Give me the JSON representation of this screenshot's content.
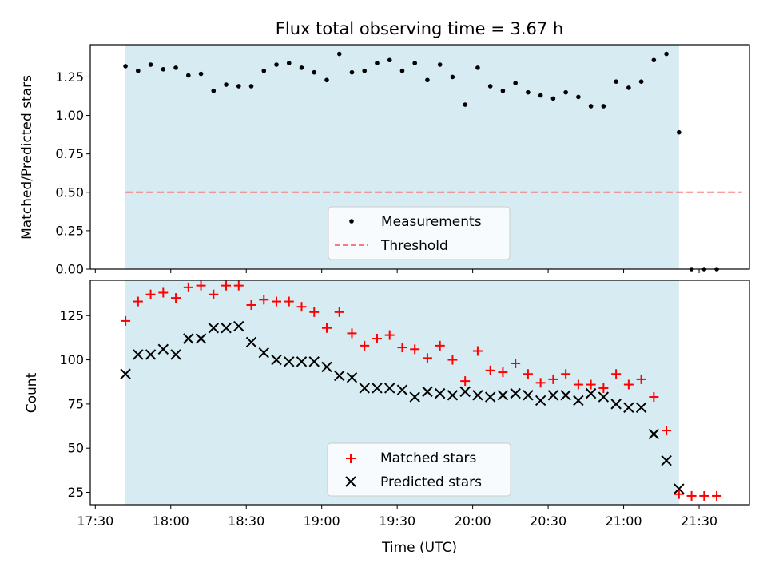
{
  "chart_data": [
    {
      "type": "scatter",
      "title": "Flux total observing time = 3.67 h",
      "xlabel": "",
      "ylabel": "Matched/Predicted stars",
      "ylim": [
        0,
        1.46
      ],
      "yticks": [
        "0.00",
        "0.25",
        "0.50",
        "0.75",
        "1.00",
        "1.25"
      ],
      "x_minutes_note": "x values are times (UTC) shown on the shared axis",
      "shaded_span": [
        "17:42",
        "21:22"
      ],
      "legend": {
        "location": "lower-center",
        "entries": [
          "Measurements",
          "Threshold"
        ]
      },
      "colors": {
        "measurements": "#000000",
        "threshold": "#f08080",
        "span": "#add8e6"
      },
      "threshold": {
        "value": 0.5,
        "x_range": [
          "17:42",
          "21:47"
        ]
      },
      "series": [
        {
          "name": "Measurements",
          "x": [
            "17:42",
            "17:47",
            "17:52",
            "17:57",
            "18:02",
            "18:07",
            "18:12",
            "18:17",
            "18:22",
            "18:27",
            "18:32",
            "18:37",
            "18:42",
            "18:47",
            "18:52",
            "18:57",
            "19:02",
            "19:07",
            "19:12",
            "19:17",
            "19:22",
            "19:27",
            "19:32",
            "19:37",
            "19:42",
            "19:47",
            "19:52",
            "19:57",
            "20:02",
            "20:07",
            "20:12",
            "20:17",
            "20:22",
            "20:27",
            "20:32",
            "20:37",
            "20:42",
            "20:47",
            "20:52",
            "20:57",
            "21:02",
            "21:07",
            "21:12",
            "21:17",
            "21:22",
            "21:27",
            "21:32",
            "21:37"
          ],
          "y": [
            1.32,
            1.29,
            1.33,
            1.3,
            1.31,
            1.26,
            1.27,
            1.16,
            1.2,
            1.19,
            1.19,
            1.29,
            1.33,
            1.34,
            1.31,
            1.28,
            1.23,
            1.4,
            1.28,
            1.29,
            1.34,
            1.36,
            1.29,
            1.34,
            1.23,
            1.33,
            1.25,
            1.07,
            1.31,
            1.19,
            1.16,
            1.21,
            1.15,
            1.13,
            1.11,
            1.15,
            1.12,
            1.06,
            1.06,
            1.22,
            1.18,
            1.22,
            1.36,
            1.4,
            0.89,
            0.0,
            0.0,
            0.0
          ]
        }
      ]
    },
    {
      "type": "scatter",
      "title": "",
      "xlabel": "Time (UTC)",
      "ylabel": "Count",
      "ylim": [
        18,
        145
      ],
      "yticks": [
        "25",
        "50",
        "75",
        "100",
        "125"
      ],
      "xticks": [
        "17:30",
        "18:00",
        "18:30",
        "19:00",
        "19:30",
        "20:00",
        "20:30",
        "21:00",
        "21:30"
      ],
      "shaded_span": [
        "17:42",
        "21:22"
      ],
      "legend": {
        "location": "lower-center",
        "entries": [
          "Matched stars",
          "Predicted stars"
        ]
      },
      "colors": {
        "matched": "#ff0000",
        "predicted": "#000000",
        "span": "#add8e6"
      },
      "series": [
        {
          "name": "Matched stars",
          "x": [
            "17:42",
            "17:47",
            "17:52",
            "17:57",
            "18:02",
            "18:07",
            "18:12",
            "18:17",
            "18:22",
            "18:27",
            "18:32",
            "18:37",
            "18:42",
            "18:47",
            "18:52",
            "18:57",
            "19:02",
            "19:07",
            "19:12",
            "19:17",
            "19:22",
            "19:27",
            "19:32",
            "19:37",
            "19:42",
            "19:47",
            "19:52",
            "19:57",
            "20:02",
            "20:07",
            "20:12",
            "20:17",
            "20:22",
            "20:27",
            "20:32",
            "20:37",
            "20:42",
            "20:47",
            "20:52",
            "20:57",
            "21:02",
            "21:07",
            "21:12",
            "21:17",
            "21:22",
            "21:27",
            "21:32",
            "21:37"
          ],
          "y": [
            122,
            133,
            137,
            138,
            135,
            141,
            142,
            137,
            142,
            142,
            131,
            134,
            133,
            133,
            130,
            127,
            118,
            127,
            115,
            108,
            112,
            114,
            107,
            106,
            101,
            108,
            100,
            88,
            105,
            94,
            93,
            98,
            92,
            87,
            89,
            92,
            86,
            86,
            84,
            92,
            86,
            89,
            79,
            60,
            24,
            23,
            23,
            23
          ]
        },
        {
          "name": "Predicted stars",
          "x": [
            "17:42",
            "17:47",
            "17:52",
            "17:57",
            "18:02",
            "18:07",
            "18:12",
            "18:17",
            "18:22",
            "18:27",
            "18:32",
            "18:37",
            "18:42",
            "18:47",
            "18:52",
            "18:57",
            "19:02",
            "19:07",
            "19:12",
            "19:17",
            "19:22",
            "19:27",
            "19:32",
            "19:37",
            "19:42",
            "19:47",
            "19:52",
            "19:57",
            "20:02",
            "20:07",
            "20:12",
            "20:17",
            "20:22",
            "20:27",
            "20:32",
            "20:37",
            "20:42",
            "20:47",
            "20:52",
            "20:57",
            "21:02",
            "21:07",
            "21:12",
            "21:17",
            "21:22"
          ],
          "y": [
            92,
            103,
            103,
            106,
            103,
            112,
            112,
            118,
            118,
            119,
            110,
            104,
            100,
            99,
            99,
            99,
            96,
            91,
            90,
            84,
            84,
            84,
            83,
            79,
            82,
            81,
            80,
            82,
            80,
            79,
            80,
            81,
            80,
            77,
            80,
            80,
            77,
            81,
            79,
            75,
            73,
            73,
            58,
            43,
            27
          ]
        }
      ]
    }
  ]
}
